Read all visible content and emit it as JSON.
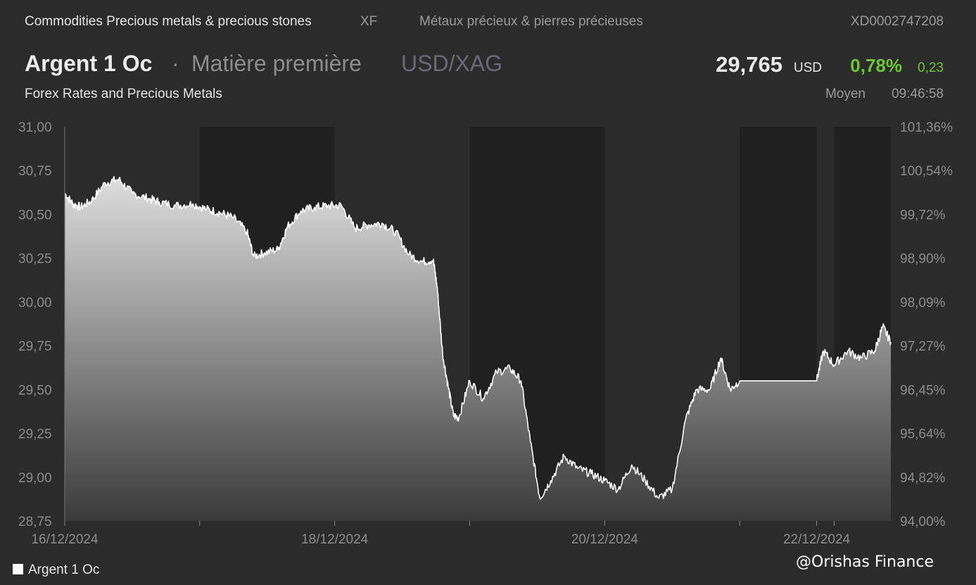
{
  "header": {
    "breadcrumb": "Commodities Precious metals & precious stones",
    "exchange": "XF",
    "category_fr": "Métaux précieux & pierres précieuses",
    "isin": "XD0002747208",
    "instrument": "Argent 1 Oc",
    "separator": "·",
    "type": "Matière première",
    "pair": "USD/XAG",
    "price": "29,765",
    "currency": "USD",
    "change_pct": "0,78%",
    "change_abs": "0,23",
    "market": "Forex Rates and Precious Metals",
    "price_type": "Moyen",
    "time": "09:46:58"
  },
  "legend": {
    "label": "Argent 1 Oc"
  },
  "watermark": "@Orishas Finance",
  "colors": {
    "background": "#2b2b2b",
    "shade": "#202020",
    "line": "#ffffff",
    "positive": "#6cc531",
    "axis_text": "#8c8c8c"
  },
  "chart_data": {
    "type": "area",
    "title": "",
    "xlabel": "",
    "ylabel": "",
    "ylim": [
      28.75,
      31.0
    ],
    "y_ticks": [
      "31,00",
      "30,75",
      "30,50",
      "30,25",
      "30,00",
      "29,75",
      "29,50",
      "29,25",
      "29,00",
      "28,75"
    ],
    "y_right_ticks": [
      "101,36%",
      "100,54%",
      "99,72%",
      "98,90%",
      "98,09%",
      "97,27%",
      "96,45%",
      "95,64%",
      "94,82%",
      "94,00%"
    ],
    "x_labels": [
      {
        "label": "16/12/2024",
        "day": 0
      },
      {
        "label": "18/12/2024",
        "day": 2
      },
      {
        "label": "20/12/2024",
        "day": 4
      },
      {
        "label": "22/12/2024",
        "day": 5.57
      }
    ],
    "x_ticks_days": [
      0,
      1,
      2,
      3,
      4,
      5,
      5.57,
      5.7
    ],
    "x_range_days": [
      0,
      6.12
    ],
    "shaded_periods_days": [
      [
        1,
        2
      ],
      [
        3,
        4
      ],
      [
        5,
        5.57
      ],
      [
        5.7,
        6.12
      ]
    ],
    "grid": false,
    "legend_position": "bottom-left",
    "series": [
      {
        "name": "Argent 1 Oc",
        "points": [
          [
            0.0,
            30.62
          ],
          [
            0.06,
            30.56
          ],
          [
            0.12,
            30.54
          ],
          [
            0.2,
            30.58
          ],
          [
            0.3,
            30.68
          ],
          [
            0.4,
            30.7
          ],
          [
            0.5,
            30.62
          ],
          [
            0.62,
            30.59
          ],
          [
            0.7,
            30.57
          ],
          [
            0.82,
            30.55
          ],
          [
            0.95,
            30.56
          ],
          [
            1.05,
            30.53
          ],
          [
            1.15,
            30.51
          ],
          [
            1.25,
            30.48
          ],
          [
            1.35,
            30.4
          ],
          [
            1.4,
            30.26
          ],
          [
            1.48,
            30.28
          ],
          [
            1.58,
            30.3
          ],
          [
            1.65,
            30.43
          ],
          [
            1.75,
            30.52
          ],
          [
            1.85,
            30.54
          ],
          [
            1.95,
            30.55
          ],
          [
            2.05,
            30.55
          ],
          [
            2.15,
            30.42
          ],
          [
            2.25,
            30.44
          ],
          [
            2.35,
            30.45
          ],
          [
            2.45,
            30.4
          ],
          [
            2.55,
            30.27
          ],
          [
            2.65,
            30.23
          ],
          [
            2.73,
            30.24
          ],
          [
            2.76,
            30.08
          ],
          [
            2.8,
            29.7
          ],
          [
            2.84,
            29.52
          ],
          [
            2.88,
            29.35
          ],
          [
            2.92,
            29.34
          ],
          [
            3.0,
            29.55
          ],
          [
            3.1,
            29.45
          ],
          [
            3.2,
            29.6
          ],
          [
            3.3,
            29.62
          ],
          [
            3.38,
            29.55
          ],
          [
            3.45,
            29.2
          ],
          [
            3.52,
            28.88
          ],
          [
            3.6,
            28.98
          ],
          [
            3.7,
            29.12
          ],
          [
            3.8,
            29.05
          ],
          [
            3.9,
            29.02
          ],
          [
            4.0,
            28.98
          ],
          [
            4.1,
            28.93
          ],
          [
            4.2,
            29.07
          ],
          [
            4.3,
            28.98
          ],
          [
            4.4,
            28.88
          ],
          [
            4.5,
            28.93
          ],
          [
            4.6,
            29.33
          ],
          [
            4.68,
            29.5
          ],
          [
            4.78,
            29.5
          ],
          [
            4.86,
            29.68
          ],
          [
            4.93,
            29.5
          ],
          [
            5.0,
            29.55
          ],
          [
            5.57,
            29.55
          ],
          [
            5.62,
            29.72
          ],
          [
            5.7,
            29.64
          ],
          [
            5.8,
            29.72
          ],
          [
            5.9,
            29.68
          ],
          [
            6.0,
            29.72
          ],
          [
            6.06,
            29.86
          ],
          [
            6.12,
            29.77
          ]
        ]
      }
    ]
  }
}
